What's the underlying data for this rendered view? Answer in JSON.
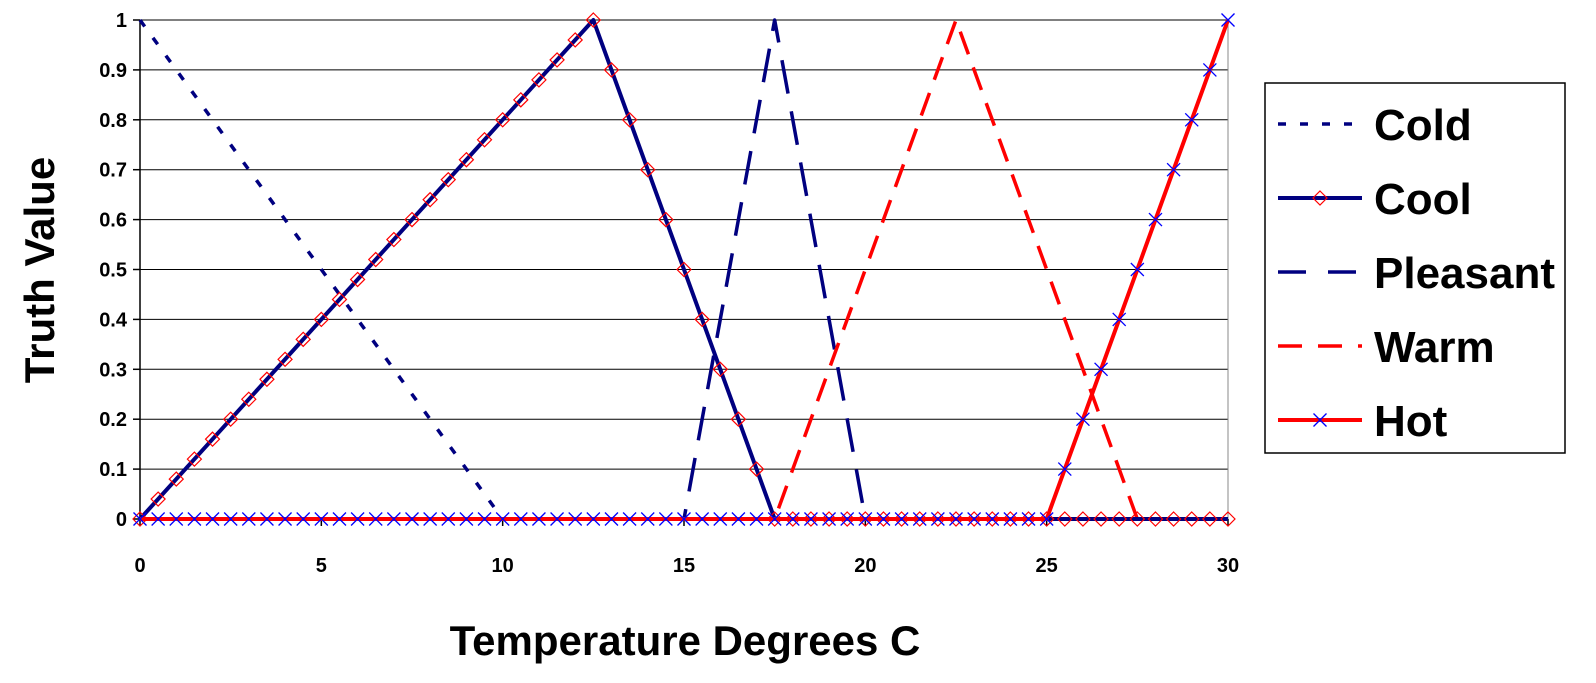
{
  "chart_data": {
    "type": "line",
    "xlabel": "Temperature Degrees C",
    "ylabel": "Truth Value",
    "xlim": [
      0,
      30
    ],
    "ylim": [
      0,
      1
    ],
    "x_ticks": [
      "0",
      "5",
      "10",
      "15",
      "20",
      "25",
      "30"
    ],
    "y_ticks": [
      "0",
      "0.1",
      "0.2",
      "0.3",
      "0.4",
      "0.5",
      "0.6",
      "0.7",
      "0.8",
      "0.9",
      "1"
    ],
    "grid": "horizontal",
    "legend_position": "right",
    "series": [
      {
        "name": "Cold",
        "color": "#000080",
        "line_style": "dotted",
        "marker": "none",
        "x": [
          0,
          10,
          30
        ],
        "y": [
          1,
          0,
          0
        ]
      },
      {
        "name": "Cool",
        "color": "#000080",
        "line_style": "solid",
        "marker": "diamond",
        "marker_color": "#ff0000",
        "x": [
          0,
          12.5,
          17.5,
          30
        ],
        "y": [
          0,
          1,
          0,
          0
        ]
      },
      {
        "name": "Pleasant",
        "color": "#000080",
        "line_style": "long-dash",
        "marker": "none",
        "x": [
          0,
          15,
          17.5,
          20,
          30
        ],
        "y": [
          0,
          0,
          1,
          0,
          0
        ]
      },
      {
        "name": "Warm",
        "color": "#ff0000",
        "line_style": "dash",
        "marker": "none",
        "x": [
          0,
          17.5,
          22.5,
          27.5,
          30
        ],
        "y": [
          0,
          0,
          1,
          0,
          0
        ]
      },
      {
        "name": "Hot",
        "color": "#ff0000",
        "line_style": "solid",
        "marker": "x",
        "marker_color": "#0000ff",
        "x": [
          0,
          25,
          30
        ],
        "y": [
          0,
          0,
          1
        ]
      }
    ]
  }
}
